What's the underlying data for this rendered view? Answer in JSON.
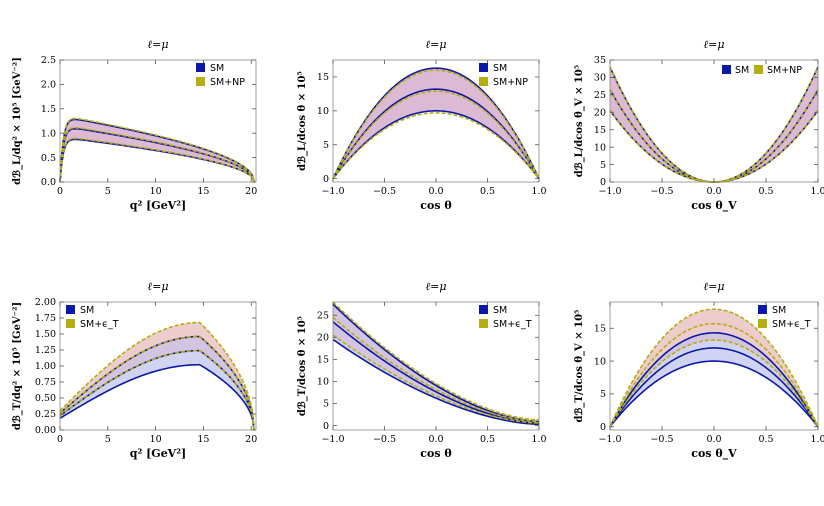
{
  "colors": {
    "sm": "#0c18a8",
    "np": "#b5ae10",
    "band_pink": "#d9b3cf",
    "band_salmon": "#f7d6c8",
    "band_blue": "#c8cdf0"
  },
  "chart_data": [
    {
      "type": "line",
      "title": "ℓ=μ",
      "xlabel": "q² [GeV²]",
      "ylabel": "dℬ_L/dq² × 10⁵ [GeV⁻²]",
      "xlim": [
        0,
        20.5
      ],
      "ylim": [
        0,
        2.5
      ],
      "xticks": [
        0,
        5,
        10,
        15,
        20
      ],
      "xtick_labels": [
        "0",
        "5",
        "10",
        "15",
        "20"
      ],
      "yticks": [
        0,
        0.5,
        1.0,
        1.5,
        2.0,
        2.5
      ],
      "ytick_labels": [
        "0.0",
        "0.5",
        "1.0",
        "1.5",
        "2.0",
        "2.5"
      ],
      "legend": {
        "position": "top-right",
        "layout": "column",
        "entries": [
          "SM",
          "SM+NP"
        ]
      },
      "shape": "long",
      "xmin": 0,
      "xmax": 20.3,
      "sm_peaks": [
        0.92,
        1.15,
        1.35
      ],
      "np_peaks": [
        0.94,
        1.17,
        1.37
      ],
      "band": "pink"
    },
    {
      "type": "line",
      "title": "ℓ=μ",
      "xlabel": "cos θ",
      "ylabel": "dℬ_L/dcos θ × 10⁵",
      "xlim": [
        -1,
        1
      ],
      "ylim": [
        -0.5,
        17.5
      ],
      "xticks": [
        -1,
        -0.5,
        0,
        0.5,
        1
      ],
      "xtick_labels": [
        "−1.0",
        "−0.5",
        "0.0",
        "0.5",
        "1.0"
      ],
      "yticks": [
        0,
        5,
        10,
        15
      ],
      "ytick_labels": [
        "0",
        "5",
        "10",
        "15"
      ],
      "legend": {
        "position": "top-right",
        "layout": "column",
        "entries": [
          "SM",
          "SM+NP"
        ]
      },
      "shape": "inv_parabola",
      "sm_peaks": [
        10.0,
        13.2,
        16.3
      ],
      "np_peaks": [
        9.7,
        12.9,
        16.0
      ],
      "band": "pink"
    },
    {
      "type": "line",
      "title": "ℓ=μ",
      "xlabel": "cos θ_V",
      "ylabel": "dℬ_L/dcos θ_V × 10⁵",
      "xlim": [
        -1,
        1
      ],
      "ylim": [
        0,
        35
      ],
      "xticks": [
        -1,
        -0.5,
        0,
        0.5,
        1
      ],
      "xtick_labels": [
        "−1.0",
        "−0.5",
        "0.0",
        "0.5",
        "1.0"
      ],
      "yticks": [
        0,
        5,
        10,
        15,
        20,
        25,
        30,
        35
      ],
      "ytick_labels": [
        "0",
        "5",
        "10",
        "15",
        "20",
        "25",
        "30",
        "35"
      ],
      "legend": {
        "position": "top-right",
        "layout": "row",
        "entries": [
          "SM",
          "SM+NP"
        ]
      },
      "shape": "parabola",
      "sm_peaks": [
        20.5,
        26.5,
        33.0
      ],
      "np_peaks": [
        20.5,
        26.5,
        33.0
      ],
      "band": "pink"
    },
    {
      "type": "line",
      "title": "ℓ=μ",
      "xlabel": "q² [GeV²]",
      "ylabel": "dℬ_T/dq² × 10⁵ [GeV⁻²]",
      "xlim": [
        0,
        20.5
      ],
      "ylim": [
        0,
        2.0
      ],
      "xticks": [
        0,
        5,
        10,
        15,
        20
      ],
      "xtick_labels": [
        "0",
        "5",
        "10",
        "15",
        "20"
      ],
      "yticks": [
        0,
        0.25,
        0.5,
        0.75,
        1.0,
        1.25,
        1.5,
        1.75,
        2.0
      ],
      "ytick_labels": [
        "0.00",
        "0.25",
        "0.50",
        "0.75",
        "1.00",
        "1.25",
        "1.50",
        "1.75",
        "2.00"
      ],
      "legend": {
        "position": "top-left",
        "layout": "column",
        "entries": [
          "SM",
          "SM+ϵ_T"
        ]
      },
      "shape": "rise",
      "xmin": 0,
      "xmax": 20.3,
      "sm_peaks": [
        1.02,
        1.24,
        1.46
      ],
      "np_peaks": [
        1.24,
        1.46,
        1.68
      ],
      "band": "split"
    },
    {
      "type": "line",
      "title": "ℓ=μ",
      "xlabel": "cos θ",
      "ylabel": "dℬ_T/dcos θ × 10⁵",
      "xlim": [
        -1,
        1
      ],
      "ylim": [
        -1,
        28
      ],
      "xticks": [
        -1,
        -0.5,
        0,
        0.5,
        1
      ],
      "xtick_labels": [
        "−1.0",
        "−0.5",
        "0.0",
        "0.5",
        "1.0"
      ],
      "yticks": [
        0,
        5,
        10,
        15,
        20,
        25
      ],
      "ytick_labels": [
        "0",
        "5",
        "10",
        "15",
        "20",
        "25"
      ],
      "legend": {
        "position": "top-right",
        "layout": "column",
        "entries": [
          "SM",
          "SM+ϵ_T"
        ]
      },
      "shape": "decay",
      "sm_peaks": [
        19.5,
        23.5,
        27.5
      ],
      "np_peaks": [
        20.5,
        24.5,
        28.0
      ],
      "sm_ends": [
        0.3,
        0.6,
        0.9
      ],
      "np_ends": [
        0.6,
        0.9,
        1.3
      ],
      "band": "split"
    },
    {
      "type": "line",
      "title": "ℓ=μ",
      "xlabel": "cos θ_V",
      "ylabel": "dℬ_T/dcos θ_V × 10⁵",
      "xlim": [
        -1,
        1
      ],
      "ylim": [
        -0.5,
        19
      ],
      "xticks": [
        -1,
        -0.5,
        0,
        0.5,
        1
      ],
      "xtick_labels": [
        "−1.0",
        "−0.5",
        "0.0",
        "0.5",
        "1.0"
      ],
      "yticks": [
        0,
        5,
        10,
        15
      ],
      "ytick_labels": [
        "0",
        "5",
        "10",
        "15"
      ],
      "legend": {
        "position": "top-right",
        "layout": "column",
        "entries": [
          "SM",
          "SM+ϵ_T"
        ]
      },
      "shape": "inv_parabola",
      "sm_peaks": [
        10.0,
        12.0,
        14.3
      ],
      "np_peaks": [
        13.2,
        15.7,
        17.9
      ],
      "band": "split"
    }
  ]
}
